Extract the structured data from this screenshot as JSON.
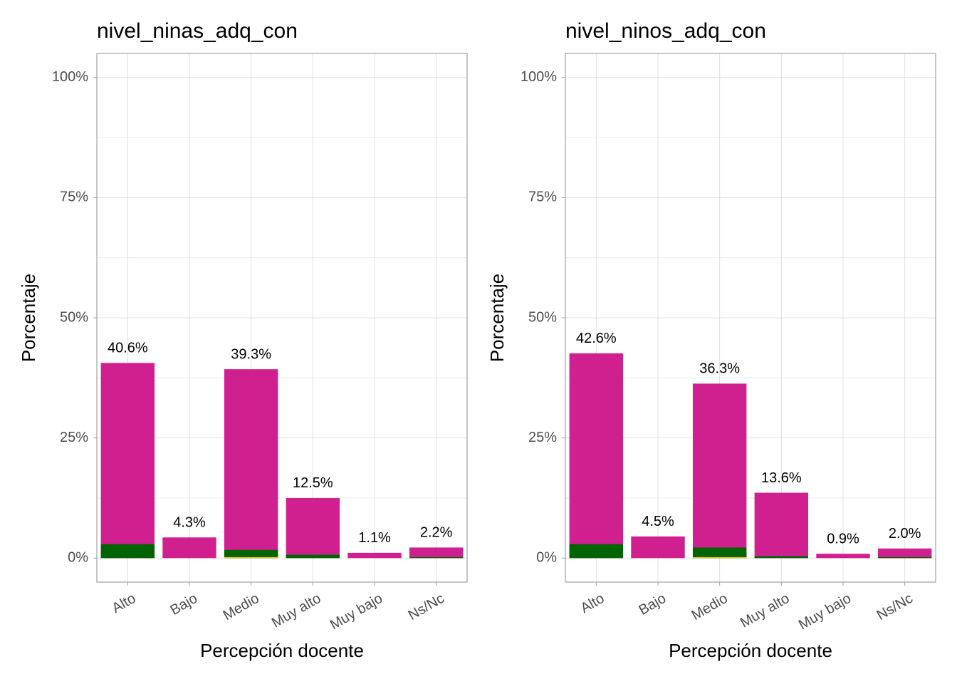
{
  "chart_data": [
    {
      "type": "bar",
      "barmode": "overlay",
      "title": "nivel_ninas_adq_con",
      "x_label": "Percepción docente",
      "y_label": "Porcentaje",
      "categories": [
        "Alto",
        "Bajo",
        "Medio",
        "Muy alto",
        "Muy bajo",
        "Ns/Nc"
      ],
      "series": [
        {
          "color": "#d02090",
          "values": [
            40.6,
            4.3,
            39.3,
            12.5,
            1.1,
            2.2
          ],
          "value_labels": [
            "40.6%",
            "4.3%",
            "39.3%",
            "12.5%",
            "1.1%",
            "2.2%"
          ]
        },
        {
          "color": "#006400",
          "values": [
            2.9,
            0,
            1.7,
            0.7,
            0,
            0.2
          ]
        },
        {
          "color": "#e6c800",
          "values": [
            0,
            0,
            0.2,
            0,
            0,
            0
          ]
        }
      ],
      "ylim": [
        -5,
        105
      ],
      "yticks": [
        {
          "value": 0,
          "label": "0%"
        },
        {
          "value": 25,
          "label": "25%"
        },
        {
          "value": 50,
          "label": "50%"
        },
        {
          "value": 75,
          "label": "75%"
        },
        {
          "value": 100,
          "label": "100%"
        }
      ],
      "grid": true
    },
    {
      "type": "bar",
      "barmode": "overlay",
      "title": "nivel_ninos_adq_con",
      "x_label": "Percepción docente",
      "y_label": "Porcentaje",
      "categories": [
        "Alto",
        "Bajo",
        "Medio",
        "Muy alto",
        "Muy bajo",
        "Ns/Nc"
      ],
      "series": [
        {
          "color": "#d02090",
          "values": [
            42.6,
            4.5,
            36.3,
            13.6,
            0.9,
            2.0
          ],
          "value_labels": [
            "42.6%",
            "4.5%",
            "36.3%",
            "13.6%",
            "0.9%",
            "2.0%"
          ]
        },
        {
          "color": "#006400",
          "values": [
            2.9,
            0,
            2.2,
            0.4,
            0,
            0.2
          ]
        },
        {
          "color": "#e6c800",
          "values": [
            0,
            0,
            0.2,
            0,
            0,
            0
          ]
        }
      ],
      "ylim": [
        -5,
        105
      ],
      "yticks": [
        {
          "value": 0,
          "label": "0%"
        },
        {
          "value": 25,
          "label": "25%"
        },
        {
          "value": 50,
          "label": "50%"
        },
        {
          "value": 75,
          "label": "75%"
        },
        {
          "value": 100,
          "label": "100%"
        }
      ],
      "grid": true
    }
  ]
}
